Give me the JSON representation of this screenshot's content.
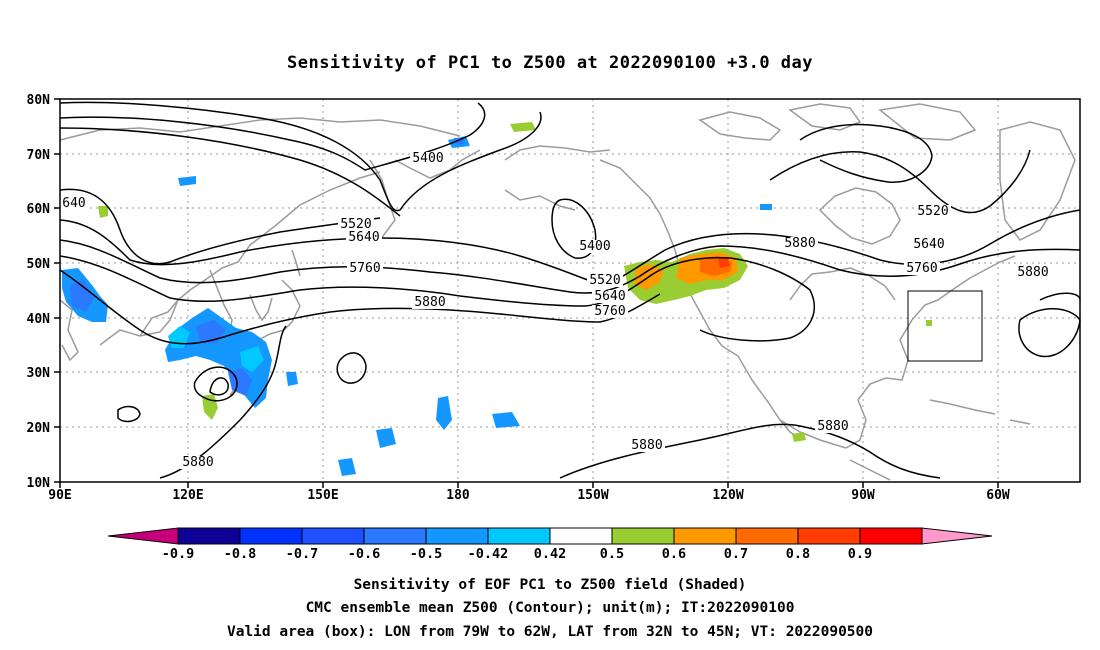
{
  "title": "Sensitivity of PC1 to Z500 at 2022090100 +3.0 day",
  "axes": {
    "lat_ticks": [
      "80N",
      "70N",
      "60N",
      "50N",
      "40N",
      "30N",
      "20N",
      "10N"
    ],
    "lon_ticks": [
      "90E",
      "120E",
      "150E",
      "180",
      "150W",
      "120W",
      "90W",
      "60W"
    ]
  },
  "contour_labels": [
    "640",
    "5400",
    "5520",
    "5640",
    "5760",
    "5880",
    "5400",
    "5520",
    "5640",
    "5760",
    "5880",
    "5520",
    "5640",
    "5760",
    "5880",
    "5880",
    "5880",
    "5880"
  ],
  "colorbar": {
    "tick_labels": [
      "-0.9",
      "-0.8",
      "-0.7",
      "-0.6",
      "-0.5",
      "-0.42",
      "0.42",
      "0.5",
      "0.6",
      "0.7",
      "0.8",
      "0.9"
    ],
    "colors": [
      "#0c0096",
      "#0033ff",
      "#1f50ff",
      "#2c78ff",
      "#1497ff",
      "#00c9ff",
      "#ffffff",
      "#9acd32",
      "#ff9900",
      "#ff6a00",
      "#ff3e00",
      "#ff0000"
    ],
    "left_cap_color": "#c7007a",
    "right_cap_color": "#ff99cc"
  },
  "valid_box": {
    "lon_from": "79W",
    "lon_to": "62W",
    "lat_from": "32N",
    "lat_to": "45N"
  },
  "caption": [
    "Sensitivity of EOF PC1 to Z500 field (Shaded)",
    "CMC ensemble mean Z500 (Contour); unit(m); IT:2022090100",
    "Valid area (box): LON from 79W to 62W, LAT from 32N to 45N; VT: 2022090500"
  ]
}
